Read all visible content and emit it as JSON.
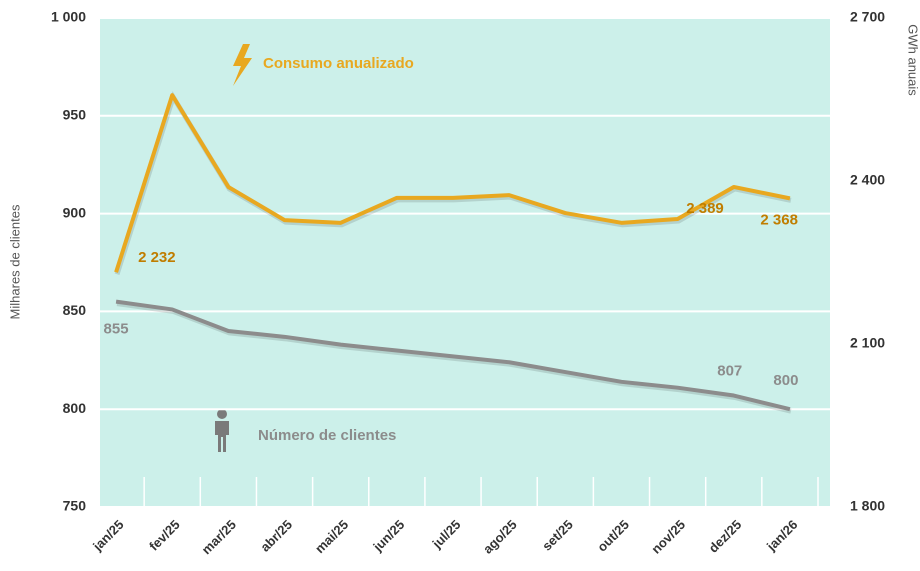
{
  "chart_data": {
    "type": "line",
    "y_label": "Milhares de clientes",
    "y2_label": "GWh anuais",
    "categories": [
      "jan/25",
      "fev/25",
      "mar/25",
      "abr/25",
      "mai/25",
      "jun/25",
      "jul/25",
      "ago/25",
      "set/25",
      "out/25",
      "nov/25",
      "dez/25",
      "jan/26"
    ],
    "series": [
      {
        "name": "Consumo anualizado",
        "color": "#e8a820",
        "axis": "y2",
        "values": [
          2232,
          2558,
          2389,
          2328,
          2323,
          2369,
          2369,
          2374,
          2341,
          2323,
          2330,
          2389,
          2368
        ],
        "value_labels": [
          "2 232",
          null,
          null,
          null,
          null,
          null,
          null,
          null,
          null,
          null,
          null,
          "2 389",
          "2 368"
        ]
      },
      {
        "name": "Número de clientes",
        "color": "#8c8c8c",
        "axis": "y",
        "values": [
          855,
          851,
          840,
          837,
          833,
          830,
          827,
          824,
          819,
          814,
          811,
          807,
          800
        ],
        "value_labels": [
          "855",
          null,
          null,
          null,
          null,
          null,
          null,
          null,
          null,
          null,
          null,
          "807",
          "800"
        ]
      }
    ],
    "ylim": [
      750,
      1000
    ],
    "yticks": [
      750,
      800,
      850,
      900,
      950,
      {
        "value": 1000,
        "label": "1 000"
      }
    ],
    "y2lim": [
      1800,
      2700
    ],
    "y2ticks": [
      {
        "value": 1800,
        "label": "1 800"
      },
      {
        "value": 2100,
        "label": "2 100"
      },
      {
        "value": 2400,
        "label": "2 400"
      },
      {
        "value": 2700,
        "label": "2 700"
      }
    ],
    "grid": true
  }
}
